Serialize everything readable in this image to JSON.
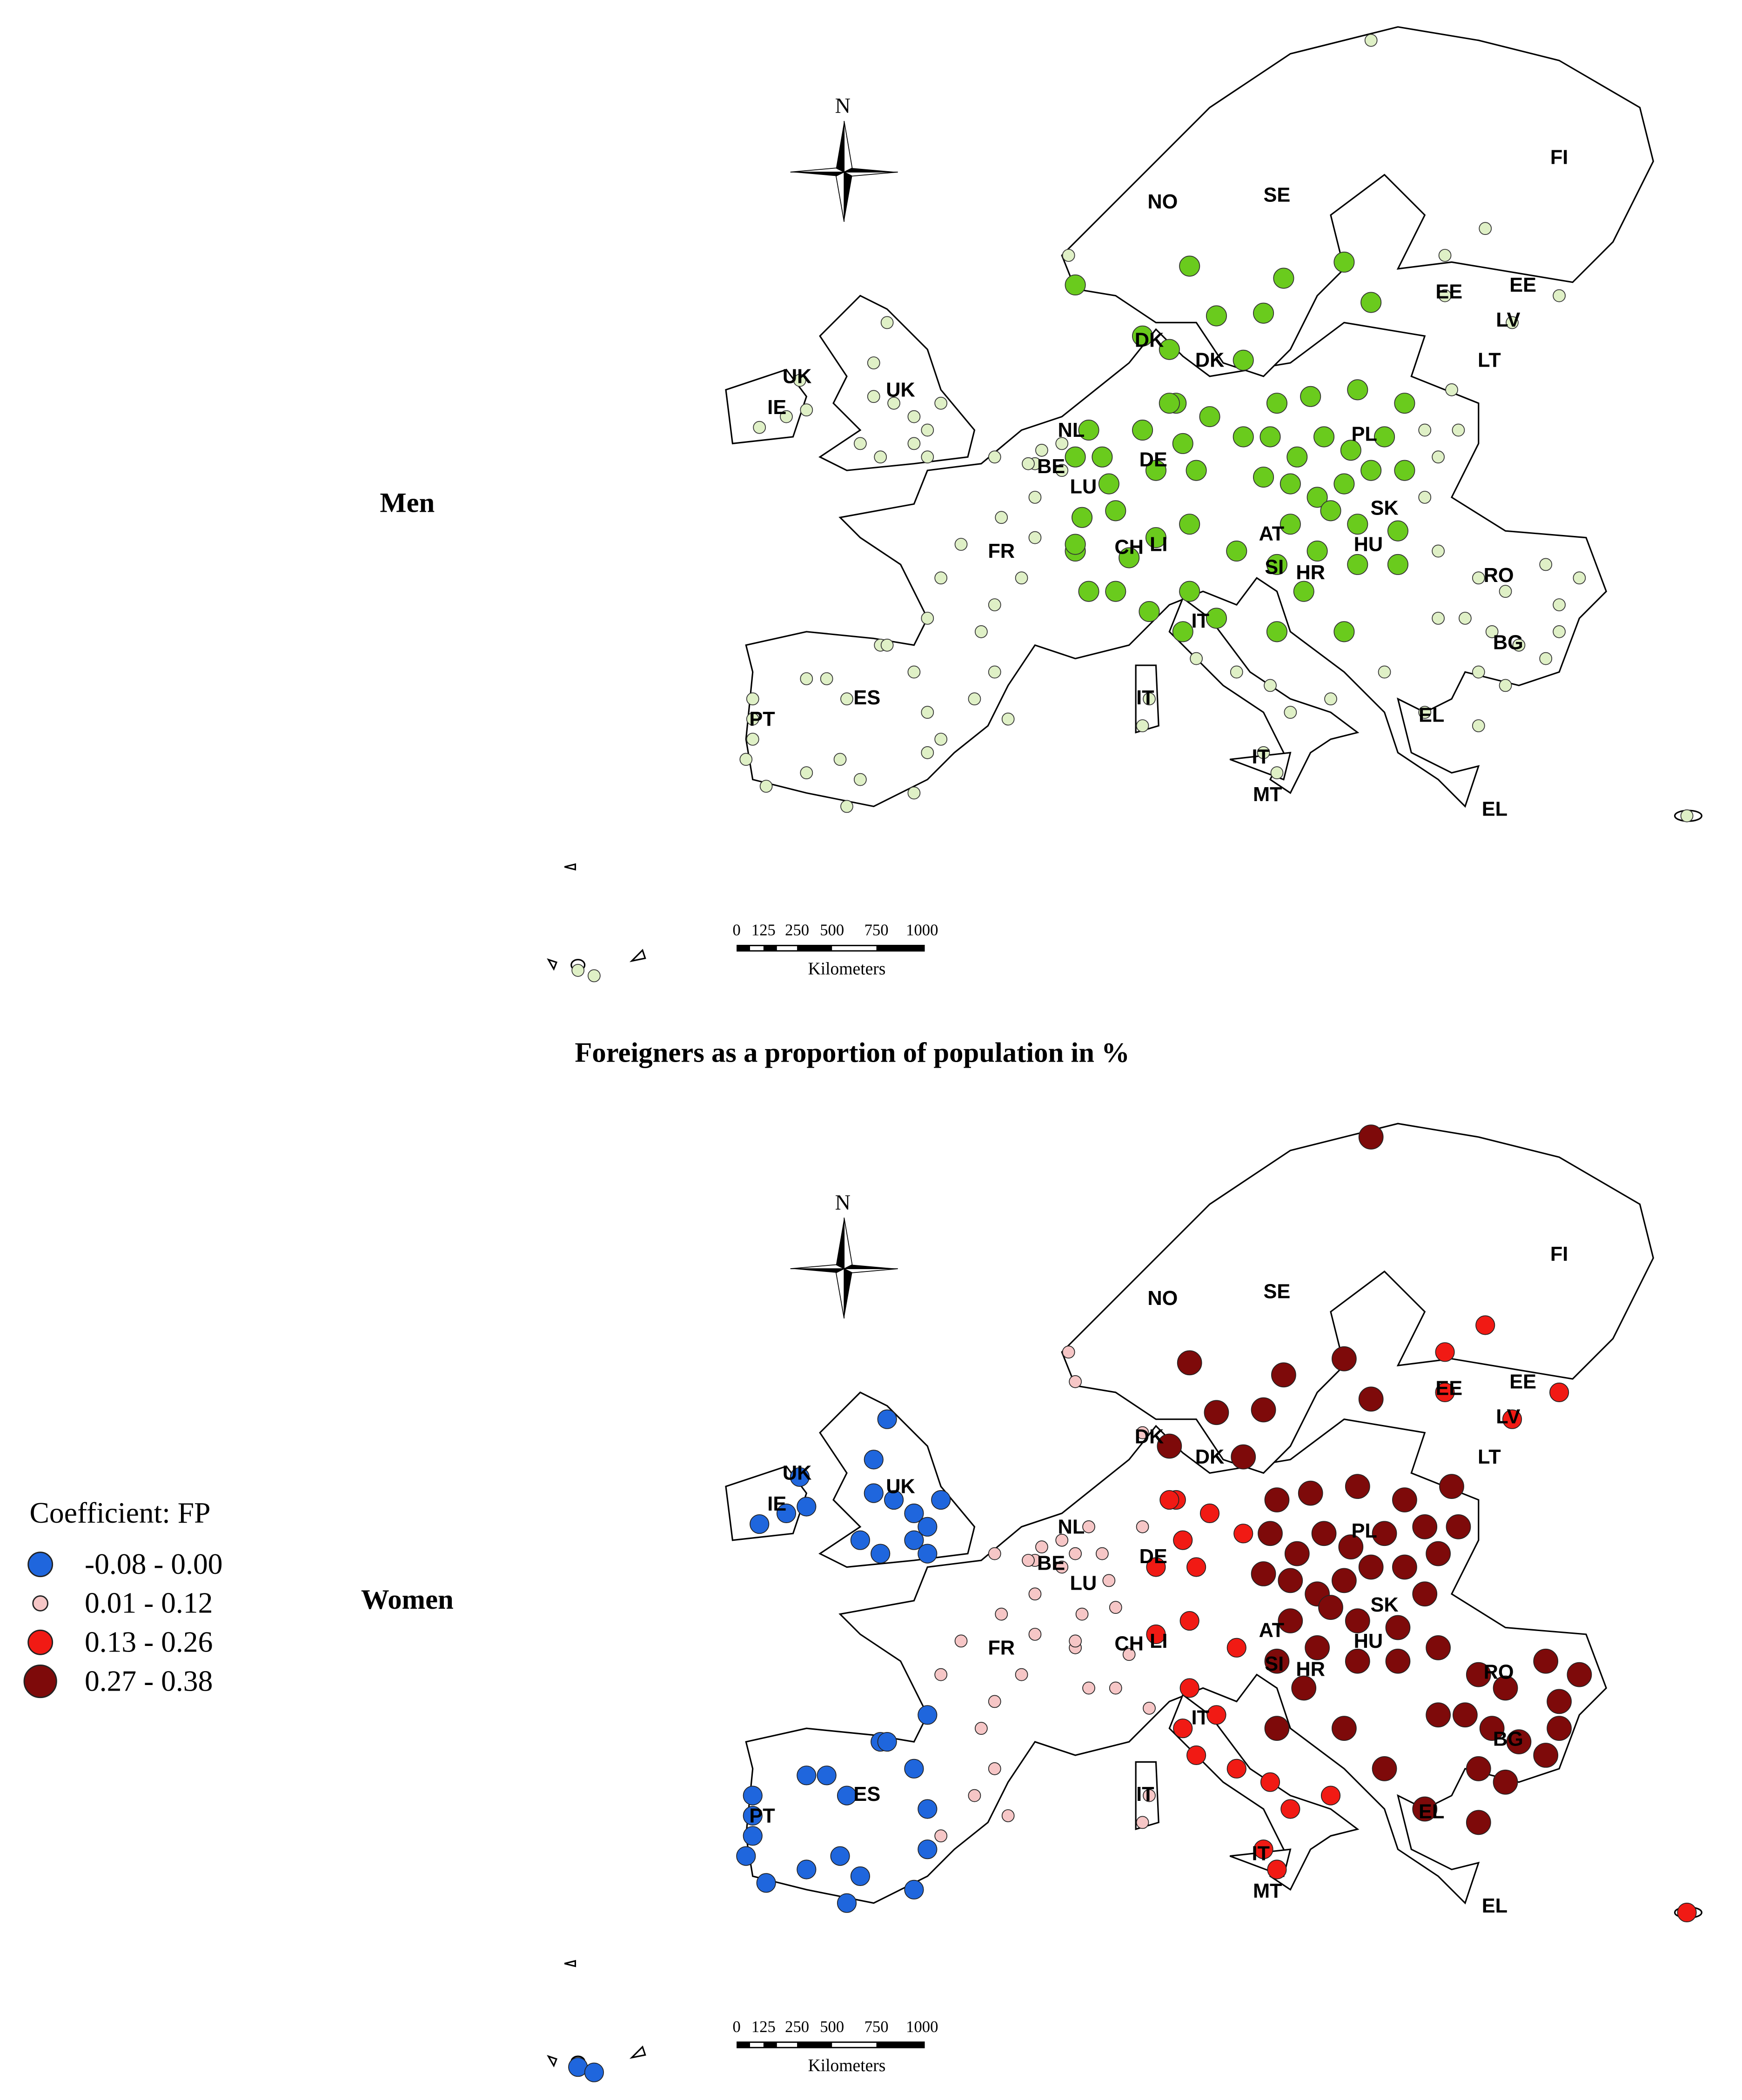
{
  "maps": [
    {
      "label": "Men",
      "colors": [
        "#dff0c6",
        "#6acb1d"
      ],
      "country_labels": [
        "NO",
        "SE",
        "FI",
        "EE",
        "EE",
        "LV",
        "LT",
        "DK",
        "DK",
        "UK",
        "UK",
        "IE",
        "NL",
        "BE",
        "LU",
        "DE",
        "PL",
        "SK",
        "HU",
        "AT",
        "CH",
        "LI",
        "SI",
        "HR",
        "RO",
        "BG",
        "FR",
        "ES",
        "PT",
        "IT",
        "IT",
        "IT",
        "EL",
        "EL",
        "MT"
      ]
    },
    {
      "label": "Women",
      "country_labels": [
        "NO",
        "SE",
        "FI",
        "EE",
        "EE",
        "LV",
        "LT",
        "DK",
        "DK",
        "UK",
        "UK",
        "IE",
        "NL",
        "BE",
        "LU",
        "DE",
        "PL",
        "SK",
        "HU",
        "AT",
        "CH",
        "LI",
        "SI",
        "HR",
        "RO",
        "BG",
        "FR",
        "ES",
        "PT",
        "IT",
        "IT",
        "IT",
        "EL",
        "EL",
        "MT"
      ]
    }
  ],
  "north": "N",
  "scale": {
    "ticks": [
      "0",
      "125",
      "250",
      "500",
      "750",
      "1000"
    ],
    "unit": "Kilometers"
  },
  "caption": "Foreigners as a proportion of population in %",
  "legend": {
    "title": "Coefficient: FP",
    "classes": [
      {
        "label": "-0.08 - 0.00",
        "color": "#1f66dd"
      },
      {
        "label": "0.01 - 0.12",
        "color": "#f6c6c6"
      },
      {
        "label": "0.13 - 0.26",
        "color": "#f11a14"
      },
      {
        "label": "0.27 - 0.38",
        "color": "#7e0a0a"
      }
    ]
  }
}
